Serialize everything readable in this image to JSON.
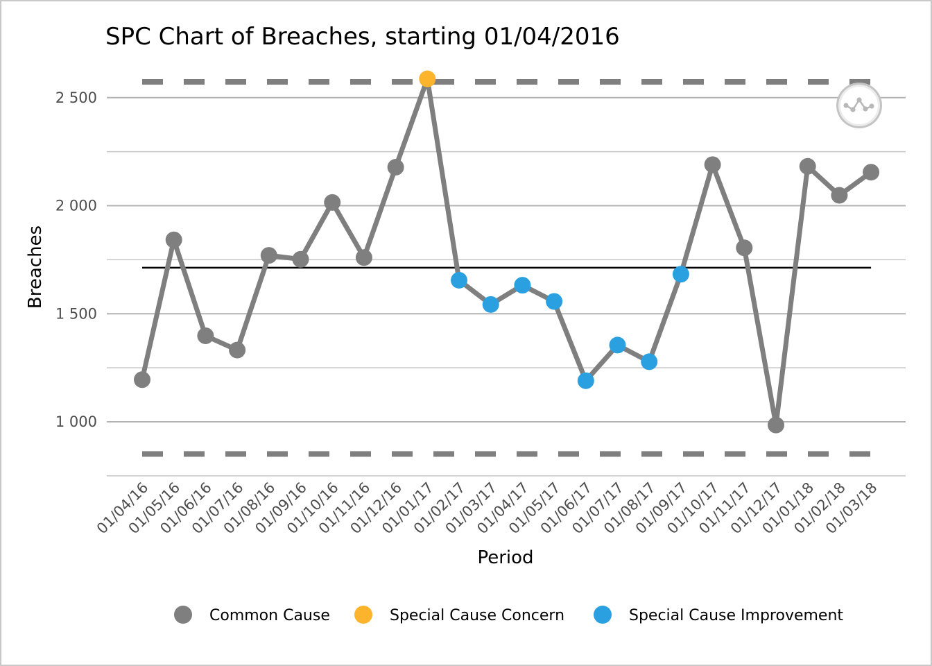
{
  "chart_data": {
    "type": "line",
    "title": "SPC Chart of Breaches, starting 01/04/2016",
    "xlabel": "Period",
    "ylabel": "Breaches",
    "categories": [
      "01/04/16",
      "01/05/16",
      "01/06/16",
      "01/07/16",
      "01/08/16",
      "01/09/16",
      "01/10/16",
      "01/11/16",
      "01/12/16",
      "01/01/17",
      "01/02/17",
      "01/03/17",
      "01/04/17",
      "01/05/17",
      "01/06/17",
      "01/07/17",
      "01/08/17",
      "01/09/17",
      "01/10/17",
      "01/11/17",
      "01/12/17",
      "01/01/18",
      "01/02/18",
      "01/03/18"
    ],
    "values": [
      1195,
      1842,
      1398,
      1332,
      1770,
      1752,
      2015,
      1760,
      2178,
      2587,
      1655,
      1543,
      1632,
      1557,
      1190,
      1355,
      1278,
      1683,
      2190,
      1805,
      985,
      2182,
      2048,
      2155
    ],
    "point_status": [
      "common",
      "common",
      "common",
      "common",
      "common",
      "common",
      "common",
      "common",
      "common",
      "concern",
      "improvement",
      "improvement",
      "improvement",
      "improvement",
      "improvement",
      "improvement",
      "improvement",
      "improvement",
      "common",
      "common",
      "common",
      "common",
      "common",
      "common"
    ],
    "mean": 1713,
    "upper_control_limit": 2573,
    "lower_control_limit": 851,
    "ylim": [
      740,
      2700
    ],
    "yticks": [
      1000,
      1500,
      2000,
      2500
    ],
    "ytick_labels": [
      "1 000",
      "1 500",
      "2 000",
      "2 500"
    ],
    "grid": true,
    "legend_position": "bottom",
    "legend": [
      {
        "key": "common",
        "label": "Common Cause",
        "color": "#7f7f7f"
      },
      {
        "key": "concern",
        "label": "Special Cause Concern",
        "color": "#fbb42b"
      },
      {
        "key": "improvement",
        "label": "Special Cause Improvement",
        "color": "#2aa0e1"
      }
    ],
    "line_color": "#7f7f7f",
    "mean_color": "#000000",
    "limit_color": "#7f7f7f",
    "badge_icon": "common-cause-variation-icon"
  }
}
